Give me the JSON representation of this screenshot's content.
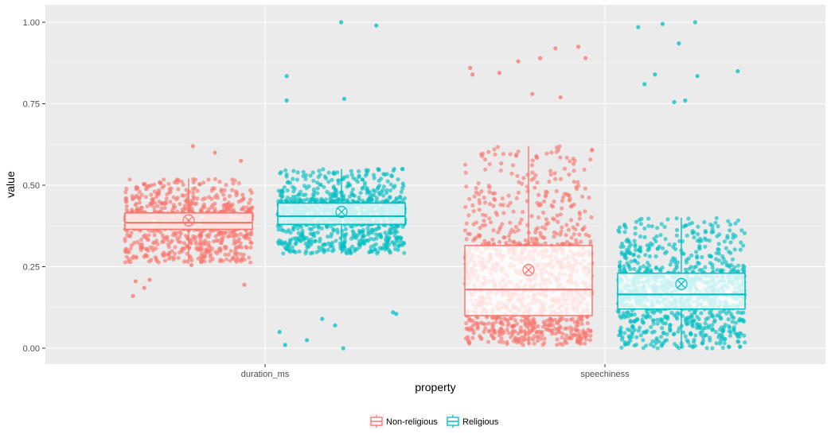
{
  "chart_data": {
    "type": "boxplot",
    "xlabel": "property",
    "ylabel": "value",
    "ylim": [
      0,
      1.0
    ],
    "y_ticks": [
      0.0,
      0.25,
      0.5,
      0.75,
      1.0
    ],
    "y_tick_labels": [
      "0.00",
      "0.25",
      "0.50",
      "0.75",
      "1.00"
    ],
    "categories": [
      "duration_ms",
      "speechiness"
    ],
    "grid": true,
    "legend_position": "bottom",
    "series": [
      {
        "name": "Non-religious",
        "color": "#F8766D",
        "boxes": [
          {
            "category": "duration_ms",
            "lower_whisker": 0.26,
            "q1": 0.365,
            "median": 0.385,
            "q3": 0.415,
            "upper_whisker": 0.52,
            "mean": 0.392
          },
          {
            "category": "speechiness",
            "lower_whisker": 0.01,
            "q1": 0.1,
            "median": 0.18,
            "q3": 0.315,
            "upper_whisker": 0.62,
            "mean": 0.24
          }
        ]
      },
      {
        "name": "Religious",
        "color": "#00BFC4",
        "boxes": [
          {
            "category": "duration_ms",
            "lower_whisker": 0.29,
            "q1": 0.38,
            "median": 0.405,
            "q3": 0.445,
            "upper_whisker": 0.55,
            "mean": 0.418
          },
          {
            "category": "speechiness",
            "lower_whisker": 0.0,
            "q1": 0.12,
            "median": 0.165,
            "q3": 0.23,
            "upper_whisker": 0.4,
            "mean": 0.197
          }
        ]
      }
    ],
    "outliers": [
      {
        "series": "Non-religious",
        "category": "duration_ms",
        "points": [
          0.185,
          0.21,
          0.16,
          0.62,
          0.6,
          0.575,
          0.195,
          0.205,
          0.255
        ]
      },
      {
        "series": "Religious",
        "category": "duration_ms",
        "points": [
          1.0,
          0.99,
          0.835,
          0.765,
          0.76,
          0.01,
          0.0,
          0.025,
          0.05,
          0.07,
          0.09,
          0.11,
          0.105
        ]
      },
      {
        "series": "Non-religious",
        "category": "speechiness",
        "points": [
          0.925,
          0.92,
          0.89,
          0.89,
          0.88,
          0.86,
          0.845,
          0.84,
          0.78,
          0.77
        ]
      },
      {
        "series": "Religious",
        "category": "speechiness",
        "points": [
          1.0,
          0.995,
          0.985,
          0.935,
          0.85,
          0.84,
          0.835,
          0.81,
          0.76,
          0.755
        ]
      }
    ]
  }
}
